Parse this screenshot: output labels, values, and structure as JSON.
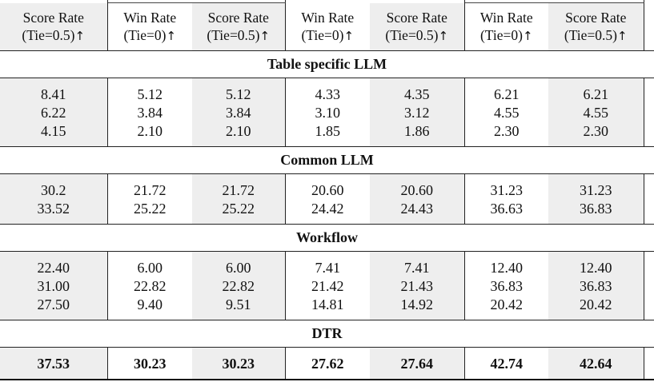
{
  "header": {
    "columns": [
      {
        "line1": "Score Rate",
        "line2": "(Tie=0.5)"
      },
      {
        "line1": "Win Rate",
        "line2": "(Tie=0)"
      },
      {
        "line1": "Score Rate",
        "line2": "(Tie=0.5)"
      },
      {
        "line1": "Win Rate",
        "line2": "(Tie=0)"
      },
      {
        "line1": "Score Rate",
        "line2": "(Tie=0.5)"
      },
      {
        "line1": "Win Rate",
        "line2": "(Tie=0)"
      },
      {
        "line1": "Score Rate",
        "line2": "(Tie=0.5)"
      }
    ],
    "arrow": "↑"
  },
  "sections": [
    {
      "title": "Table specific LLM",
      "rows": [
        [
          "8.41",
          "5.12",
          "5.12",
          "4.33",
          "4.35",
          "6.21",
          "6.21"
        ],
        [
          "6.22",
          "3.84",
          "3.84",
          "3.10",
          "3.12",
          "4.55",
          "4.55"
        ],
        [
          "4.15",
          "2.10",
          "2.10",
          "1.85",
          "1.86",
          "2.30",
          "2.30"
        ]
      ]
    },
    {
      "title": "Common LLM",
      "rows": [
        [
          "30.2",
          "21.72",
          "21.72",
          "20.60",
          "20.60",
          "31.23",
          "31.23"
        ],
        [
          "33.52",
          "25.22",
          "25.22",
          "24.42",
          "24.43",
          "36.63",
          "36.83"
        ]
      ]
    },
    {
      "title": "Workflow",
      "rows": [
        [
          "22.40",
          "6.00",
          "6.00",
          "7.41",
          "7.41",
          "12.40",
          "12.40"
        ],
        [
          "31.00",
          "22.82",
          "22.82",
          "21.42",
          "21.43",
          "36.83",
          "36.83"
        ],
        [
          "27.50",
          "9.40",
          "9.51",
          "14.81",
          "14.92",
          "20.42",
          "20.42"
        ]
      ]
    },
    {
      "title": "DTR",
      "rows": [
        [
          "37.53",
          "30.23",
          "30.23",
          "27.62",
          "27.64",
          "42.74",
          "42.64"
        ]
      ]
    }
  ],
  "style": {
    "shaded_columns": [
      0,
      2,
      4,
      6
    ],
    "bold_section": "DTR"
  }
}
